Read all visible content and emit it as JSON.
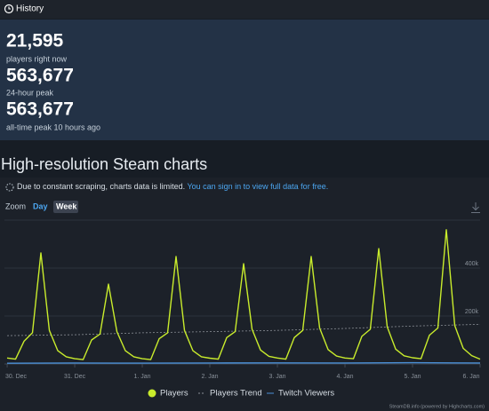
{
  "header": {
    "title": "History"
  },
  "stats": [
    {
      "value": "21,595",
      "label": "players right now"
    },
    {
      "value": "563,677",
      "label": "24-hour peak"
    },
    {
      "value": "563,677",
      "label": "all-time peak 10 hours ago"
    }
  ],
  "section_title": "High-resolution Steam charts",
  "notice": {
    "text": "Due to constant scraping, charts data is limited.",
    "link": "You can sign in to view full data for free."
  },
  "zoom": {
    "label": "Zoom",
    "options": [
      "Day",
      "Week"
    ],
    "selected": 1
  },
  "chart": {
    "type": "line",
    "xlim": [
      -0.04,
      7.0
    ],
    "xticks": [
      {
        "value": 0,
        "label": "30. Dec"
      },
      {
        "value": 1,
        "label": "31. Dec"
      },
      {
        "value": 2,
        "label": "1. Jan"
      },
      {
        "value": 3,
        "label": "2. Jan"
      },
      {
        "value": 4,
        "label": "3. Jan"
      },
      {
        "value": 5,
        "label": "4. Jan"
      },
      {
        "value": 6,
        "label": "5. Jan"
      },
      {
        "value": 7,
        "label": "6. Jan"
      }
    ],
    "ylim": [
      0,
      600000
    ],
    "yticks": [
      {
        "value": 200000,
        "label": "200k"
      },
      {
        "value": 400000,
        "label": "400k"
      }
    ],
    "series": [
      {
        "name": "Players",
        "color": "#c9ec2c",
        "legend_symbol": "circle",
        "x": [
          0,
          0.125,
          0.25,
          0.375,
          0.5,
          0.625,
          0.75,
          0.875,
          1,
          1.125,
          1.25,
          1.375,
          1.5,
          1.625,
          1.75,
          1.875,
          2,
          2.125,
          2.25,
          2.375,
          2.5,
          2.625,
          2.75,
          2.875,
          3,
          3.125,
          3.25,
          3.375,
          3.5,
          3.625,
          3.75,
          3.875,
          4,
          4.125,
          4.25,
          4.375,
          4.5,
          4.625,
          4.75,
          4.875,
          5,
          5.125,
          5.25,
          5.375,
          5.5,
          5.625,
          5.75,
          5.875,
          6,
          6.125,
          6.25,
          6.375,
          6.5,
          6.625,
          6.75,
          6.875,
          7
        ],
        "values": [
          25000,
          20000,
          95000,
          130000,
          463000,
          140000,
          55000,
          30000,
          22000,
          18000,
          100000,
          125000,
          333000,
          135000,
          55000,
          30000,
          22000,
          18000,
          105000,
          130000,
          448000,
          140000,
          55000,
          30000,
          24000,
          20000,
          110000,
          135000,
          418000,
          145000,
          58000,
          32000,
          25000,
          20000,
          110000,
          140000,
          448000,
          150000,
          60000,
          33000,
          25000,
          22000,
          115000,
          145000,
          481000,
          155000,
          62000,
          34000,
          26000,
          22000,
          120000,
          150000,
          560000,
          160000,
          65000,
          35000,
          20000
        ]
      },
      {
        "name": "Players Trend",
        "color": "#8a8f96",
        "dashed": true,
        "legend_symbol": "line",
        "x": [
          0,
          1,
          2,
          3,
          4,
          5,
          6,
          7
        ],
        "values": [
          118000,
          122000,
          130000,
          135000,
          140000,
          148000,
          158000,
          165000
        ]
      },
      {
        "name": "Twitch Viewers",
        "color": "#4a8fd6",
        "legend_symbol": "line",
        "x": [
          0,
          1,
          2,
          3,
          4,
          5,
          6,
          7
        ],
        "values": [
          3000,
          4000,
          3500,
          4000,
          4500,
          4000,
          5000,
          4000
        ]
      }
    ]
  },
  "credit": "SteamDB.info (powered by Highcharts.com)"
}
